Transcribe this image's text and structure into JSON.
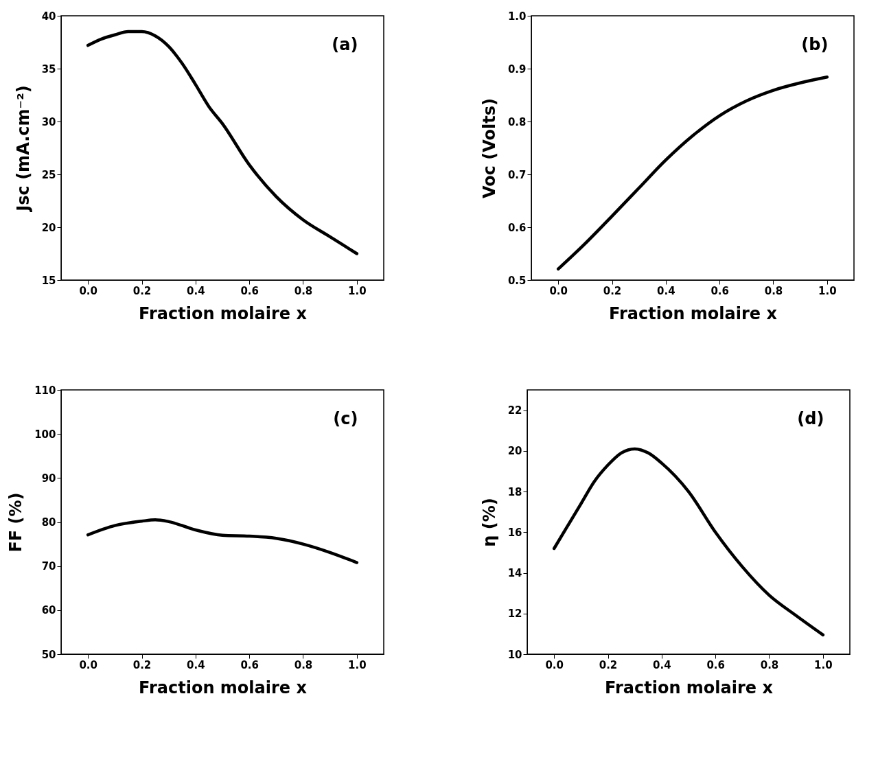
{
  "chart_data": [
    {
      "type": "line",
      "xlabel": "Fraction molaire x",
      "ylabel": "Jsc (mA.cm⁻²)",
      "annotations": [
        "(a)"
      ],
      "grid": false,
      "line_style": "solid",
      "x": [
        0.0,
        0.05,
        0.1,
        0.15,
        0.2,
        0.25,
        0.3,
        0.35,
        0.4,
        0.45,
        0.5,
        0.6,
        0.7,
        0.8,
        0.9,
        1.0
      ],
      "series": [
        {
          "color": "#000000",
          "values": [
            37.2,
            37.8,
            38.2,
            38.5,
            38.5,
            38.1,
            37.1,
            35.5,
            33.5,
            31.4,
            29.8,
            25.9,
            22.9,
            20.7,
            19.1,
            17.5
          ]
        }
      ],
      "xlim": [
        -0.1,
        1.1
      ],
      "xticks": [
        {
          "value": 0,
          "label": "0.0"
        },
        {
          "value": 0.2,
          "label": "0.2"
        },
        {
          "value": 0.4,
          "label": "0.4"
        },
        {
          "value": 0.6,
          "label": "0.6"
        },
        {
          "value": 0.8,
          "label": "0.8"
        },
        {
          "value": 1,
          "label": "1.0"
        }
      ],
      "ylim": [
        15,
        40
      ],
      "yticks": [
        15,
        20,
        25,
        30,
        35,
        40
      ]
    },
    {
      "type": "line",
      "xlabel": "Fraction molaire x",
      "ylabel": "Voc (Volts)",
      "annotations": [
        "(b)"
      ],
      "grid": false,
      "line_style": "solid",
      "x": [
        0.0,
        0.1,
        0.2,
        0.3,
        0.4,
        0.5,
        0.6,
        0.7,
        0.8,
        0.9,
        1.0
      ],
      "series": [
        {
          "color": "#000000",
          "values": [
            0.521,
            0.569,
            0.621,
            0.674,
            0.727,
            0.773,
            0.811,
            0.839,
            0.859,
            0.873,
            0.884
          ]
        }
      ],
      "xlim": [
        -0.1,
        1.1
      ],
      "xticks": [
        {
          "value": 0,
          "label": "0.0"
        },
        {
          "value": 0.2,
          "label": "0.2"
        },
        {
          "value": 0.4,
          "label": "0.4"
        },
        {
          "value": 0.6,
          "label": "0.6"
        },
        {
          "value": 0.8,
          "label": "0.8"
        },
        {
          "value": 1,
          "label": "1.0"
        }
      ],
      "ylim": [
        0.5,
        1.0
      ],
      "yticks": [
        {
          "value": 0.5,
          "label": "0.5"
        },
        0.6,
        0.7,
        0.8,
        0.9,
        {
          "value": 1,
          "label": "1.0"
        }
      ]
    },
    {
      "type": "line",
      "xlabel": "Fraction molaire x",
      "ylabel": "FF (%)",
      "annotations": [
        "(c)"
      ],
      "grid": false,
      "line_style": "solid",
      "x": [
        0.0,
        0.1,
        0.2,
        0.25,
        0.3,
        0.4,
        0.5,
        0.6,
        0.7,
        0.8,
        0.9,
        1.0
      ],
      "series": [
        {
          "color": "#000000",
          "values": [
            77.1,
            79.2,
            80.2,
            80.5,
            80.1,
            78.2,
            77.0,
            76.8,
            76.3,
            75.0,
            73.1,
            70.8
          ]
        }
      ],
      "xlim": [
        -0.1,
        1.1
      ],
      "xticks": [
        {
          "value": 0,
          "label": "0.0"
        },
        {
          "value": 0.2,
          "label": "0.2"
        },
        {
          "value": 0.4,
          "label": "0.4"
        },
        {
          "value": 0.6,
          "label": "0.6"
        },
        {
          "value": 0.8,
          "label": "0.8"
        },
        {
          "value": 1,
          "label": "1.0"
        }
      ],
      "ylim": [
        50,
        110
      ],
      "yticks": [
        50,
        60,
        70,
        80,
        90,
        100,
        110
      ]
    },
    {
      "type": "line",
      "xlabel": "Fraction molaire x",
      "ylabel": "η (%)",
      "annotations": [
        "(d)"
      ],
      "grid": false,
      "line_style": "solid",
      "x": [
        0.0,
        0.05,
        0.1,
        0.15,
        0.2,
        0.25,
        0.3,
        0.35,
        0.4,
        0.5,
        0.6,
        0.7,
        0.8,
        0.9,
        1.0
      ],
      "series": [
        {
          "color": "#000000",
          "values": [
            15.2,
            16.3,
            17.4,
            18.5,
            19.3,
            19.9,
            20.1,
            19.9,
            19.4,
            18.0,
            16.0,
            14.3,
            12.9,
            11.9,
            10.95
          ]
        }
      ],
      "xlim": [
        -0.1,
        1.1
      ],
      "xticks": [
        {
          "value": 0,
          "label": "0.0"
        },
        {
          "value": 0.2,
          "label": "0.2"
        },
        {
          "value": 0.4,
          "label": "0.4"
        },
        {
          "value": 0.6,
          "label": "0.6"
        },
        {
          "value": 0.8,
          "label": "0.8"
        },
        {
          "value": 1,
          "label": "1.0"
        }
      ],
      "ylim": [
        10,
        23
      ],
      "yticks": [
        10,
        12,
        14,
        16,
        18,
        20,
        22
      ]
    }
  ]
}
